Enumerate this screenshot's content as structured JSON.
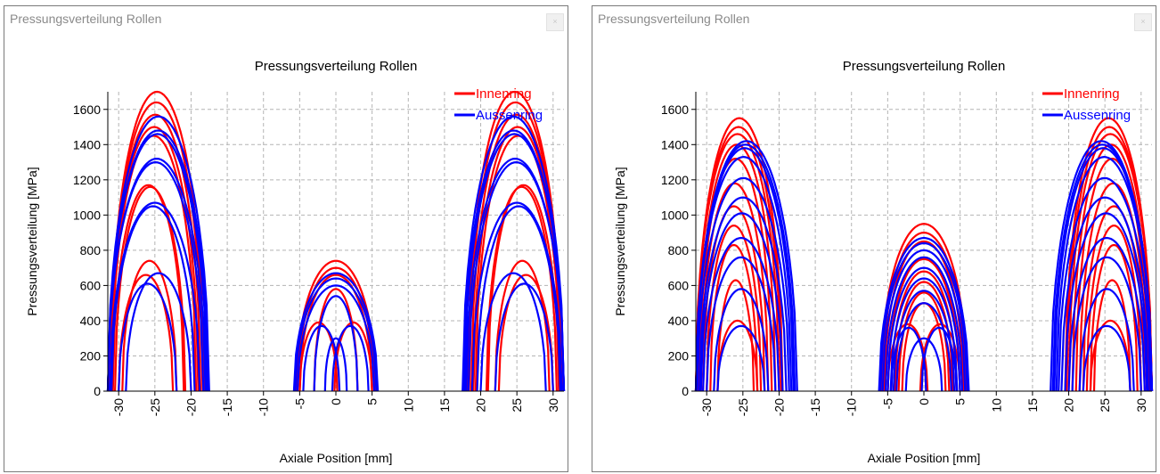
{
  "panels": [
    {
      "title": "Pressungsverteilung Rollen",
      "close_label": "×"
    },
    {
      "title": "Pressungsverteilung Rollen",
      "close_label": "×"
    }
  ],
  "colors": {
    "inner": "#ff0000",
    "outer": "#0000ff",
    "grid": "#b4b4b4"
  },
  "chart_data": [
    {
      "type": "line",
      "title": "Pressungsverteilung Rollen",
      "xlabel": "Axiale Position [mm]",
      "ylabel": "Pressungsverteilung [MPa]",
      "xlim": [
        -31.5,
        31.5
      ],
      "ylim": [
        0,
        1700
      ],
      "x_ticks": [
        -30,
        -25,
        -20,
        -15,
        -10,
        -5,
        0,
        5,
        10,
        15,
        20,
        25,
        30
      ],
      "y_ticks": [
        0,
        200,
        400,
        600,
        800,
        1000,
        1200,
        1400,
        1600
      ],
      "grid": true,
      "legend_position": "top-right",
      "legend": [
        {
          "name": "Innenring",
          "color": "#ff0000"
        },
        {
          "name": "Aussenring",
          "color": "#0000ff"
        }
      ],
      "series": [
        {
          "name": "Innenring",
          "color": "#ff0000",
          "curves": [
            [
              -31.2,
              -18.2,
              1700
            ],
            [
              -31.2,
              -18.4,
              1640
            ],
            [
              -31.2,
              -18.7,
              1570
            ],
            [
              -31.2,
              -19.0,
              1500
            ],
            [
              -31.0,
              -19.3,
              1450
            ],
            [
              -30.8,
              -21.0,
              1170
            ],
            [
              -30.5,
              -20.8,
              1160
            ],
            [
              -29.5,
              -22.0,
              740
            ],
            [
              -30.0,
              -22.5,
              660
            ],
            [
              18.2,
              31.2,
              1700
            ],
            [
              18.4,
              31.2,
              1640
            ],
            [
              18.7,
              31.2,
              1570
            ],
            [
              19.0,
              31.2,
              1500
            ],
            [
              19.3,
              31.0,
              1450
            ],
            [
              21.0,
              30.8,
              1170
            ],
            [
              20.8,
              30.5,
              1160
            ],
            [
              22.0,
              29.5,
              740
            ],
            [
              22.5,
              30.0,
              660
            ],
            [
              -5.5,
              5.5,
              740
            ],
            [
              -5.3,
              5.3,
              700
            ],
            [
              -5.0,
              5.0,
              660
            ],
            [
              -5.0,
              0.2,
              390
            ],
            [
              -0.2,
              5.0,
              390
            ],
            [
              -3.0,
              3.0,
              580
            ]
          ]
        },
        {
          "name": "Aussenring",
          "color": "#0000ff",
          "curves": [
            [
              -31.5,
              -17.5,
              1560
            ],
            [
              -31.5,
              -17.6,
              1480
            ],
            [
              -31.5,
              -17.8,
              1460
            ],
            [
              -31.5,
              -18.0,
              1320
            ],
            [
              -31.5,
              -18.3,
              1300
            ],
            [
              -31.2,
              -18.8,
              1070
            ],
            [
              -31.0,
              -19.5,
              1050
            ],
            [
              -29.0,
              -20.0,
              670
            ],
            [
              -30.0,
              -22.0,
              610
            ],
            [
              17.5,
              31.5,
              1560
            ],
            [
              17.6,
              31.5,
              1480
            ],
            [
              17.8,
              31.5,
              1460
            ],
            [
              18.0,
              31.5,
              1320
            ],
            [
              18.3,
              31.5,
              1300
            ],
            [
              18.8,
              31.2,
              1070
            ],
            [
              19.5,
              31.0,
              1050
            ],
            [
              20.0,
              29.0,
              670
            ],
            [
              22.0,
              30.0,
              610
            ],
            [
              -5.8,
              5.8,
              670
            ],
            [
              -5.6,
              5.6,
              640
            ],
            [
              -5.3,
              5.3,
              600
            ],
            [
              -4.5,
              0.5,
              370
            ],
            [
              -0.5,
              4.5,
              370
            ],
            [
              -3.0,
              3.0,
              540
            ],
            [
              -1.5,
              1.5,
              300
            ]
          ]
        }
      ]
    },
    {
      "type": "line",
      "title": "Pressungsverteilung Rollen",
      "xlabel": "Axiale Position [mm]",
      "ylabel": "Pressungsverteilung [MPa]",
      "xlim": [
        -31.5,
        31.5
      ],
      "ylim": [
        0,
        1700
      ],
      "x_ticks": [
        -30,
        -25,
        -20,
        -15,
        -10,
        -5,
        0,
        5,
        10,
        15,
        20,
        25,
        30
      ],
      "y_ticks": [
        0,
        200,
        400,
        600,
        800,
        1000,
        1200,
        1400,
        1600
      ],
      "grid": true,
      "legend_position": "top-right",
      "legend": [
        {
          "name": "Innenring",
          "color": "#ff0000"
        },
        {
          "name": "Aussenring",
          "color": "#0000ff"
        }
      ],
      "series": [
        {
          "name": "Innenring",
          "color": "#ff0000",
          "curves": [
            [
              -31.5,
              -19.5,
              1550
            ],
            [
              -31.5,
              -19.7,
              1500
            ],
            [
              -31.5,
              -20.0,
              1460
            ],
            [
              -31.2,
              -20.5,
              1400
            ],
            [
              -31.0,
              -21.0,
              1320
            ],
            [
              -30.8,
              -21.5,
              1180
            ],
            [
              -30.5,
              -22.0,
              1050
            ],
            [
              -30.0,
              -22.5,
              940
            ],
            [
              -29.5,
              -23.0,
              830
            ],
            [
              -28.5,
              -23.5,
              630
            ],
            [
              -28.5,
              -23.0,
              400
            ],
            [
              19.5,
              31.5,
              1550
            ],
            [
              19.7,
              31.5,
              1500
            ],
            [
              20.0,
              31.5,
              1460
            ],
            [
              20.5,
              31.2,
              1400
            ],
            [
              21.0,
              31.0,
              1320
            ],
            [
              21.5,
              30.8,
              1180
            ],
            [
              22.0,
              30.5,
              1050
            ],
            [
              22.5,
              30.0,
              940
            ],
            [
              23.0,
              29.5,
              830
            ],
            [
              23.5,
              28.5,
              630
            ],
            [
              23.0,
              28.5,
              400
            ],
            [
              -6.0,
              6.0,
              950
            ],
            [
              -5.8,
              5.8,
              900
            ],
            [
              -5.5,
              5.5,
              850
            ],
            [
              -5.0,
              5.0,
              750
            ],
            [
              -4.5,
              4.5,
              680
            ],
            [
              -4.0,
              4.0,
              620
            ],
            [
              -3.5,
              3.5,
              560
            ],
            [
              -3.0,
              3.0,
              500
            ],
            [
              -5.0,
              0.5,
              380
            ],
            [
              -0.5,
              5.0,
              380
            ]
          ]
        },
        {
          "name": "Aussenring",
          "color": "#0000ff",
          "curves": [
            [
              -31.5,
              -17.5,
              1420
            ],
            [
              -31.5,
              -17.8,
              1400
            ],
            [
              -31.5,
              -18.0,
              1380
            ],
            [
              -31.5,
              -18.3,
              1330
            ],
            [
              -31.3,
              -18.6,
              1210
            ],
            [
              -31.0,
              -19.0,
              1100
            ],
            [
              -30.8,
              -19.5,
              1010
            ],
            [
              -30.5,
              -20.0,
              870
            ],
            [
              -30.0,
              -20.5,
              760
            ],
            [
              -29.0,
              -21.5,
              580
            ],
            [
              -28.5,
              -22.0,
              370
            ],
            [
              17.5,
              31.5,
              1420
            ],
            [
              17.8,
              31.5,
              1400
            ],
            [
              18.0,
              31.5,
              1380
            ],
            [
              18.3,
              31.5,
              1330
            ],
            [
              18.6,
              31.3,
              1210
            ],
            [
              19.0,
              31.0,
              1100
            ],
            [
              19.5,
              30.8,
              1010
            ],
            [
              20.0,
              30.5,
              870
            ],
            [
              20.5,
              30.0,
              760
            ],
            [
              21.5,
              29.0,
              580
            ],
            [
              22.0,
              28.5,
              370
            ],
            [
              -6.2,
              6.2,
              870
            ],
            [
              -6.0,
              6.0,
              840
            ],
            [
              -5.7,
              5.7,
              800
            ],
            [
              -5.3,
              5.3,
              760
            ],
            [
              -5.0,
              5.0,
              700
            ],
            [
              -4.6,
              4.6,
              640
            ],
            [
              -4.2,
              4.2,
              570
            ],
            [
              -3.8,
              3.8,
              500
            ],
            [
              -4.5,
              0.3,
              360
            ],
            [
              -0.3,
              4.5,
              360
            ],
            [
              -2.5,
              2.5,
              300
            ]
          ]
        }
      ]
    }
  ]
}
